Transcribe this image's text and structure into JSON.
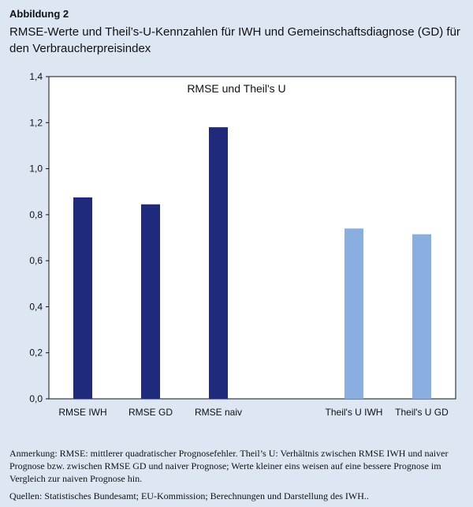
{
  "figure": {
    "label": "Abbildung 2",
    "title": "RMSE-Werte und Theil’s-U-Kennzahlen für IWH und Gemeinschaftsdiagnose (GD) für den Verbraucherpreisindex"
  },
  "chart_data": {
    "type": "bar",
    "title": "RMSE und Theil's U",
    "categories": [
      "RMSE IWH",
      "RMSE GD",
      "RMSE naiv",
      "",
      "Theil's U IWH",
      "Theil's U GD"
    ],
    "values": [
      0.875,
      0.845,
      1.18,
      null,
      0.74,
      0.715
    ],
    "bar_colors": [
      "#1f2a7c",
      "#1f2a7c",
      "#1f2a7c",
      null,
      "#8aaee0",
      "#8aaee0"
    ],
    "ylim": [
      0,
      1.4
    ],
    "yticks": [
      "0,0",
      "0,2",
      "0,4",
      "0,6",
      "0,8",
      "1,0",
      "1,2",
      "1,4"
    ],
    "xlabel": "",
    "ylabel": "",
    "grid": false
  },
  "notes": {
    "annotation": "Anmerkung: RMSE: mittlerer quadratischer Prognosefehler. Theil’s U: Verhältnis zwischen RMSE IWH und naiver Prognose bzw. zwischen RMSE GD und naiver Prognose; Werte kleiner eins weisen auf eine bessere Prognose im Vergleich zur naiven Prognose hin.",
    "source": "Quellen: Statistisches Bundesamt; EU-Kommission; Berechnungen und Darstellung des IWH.."
  }
}
